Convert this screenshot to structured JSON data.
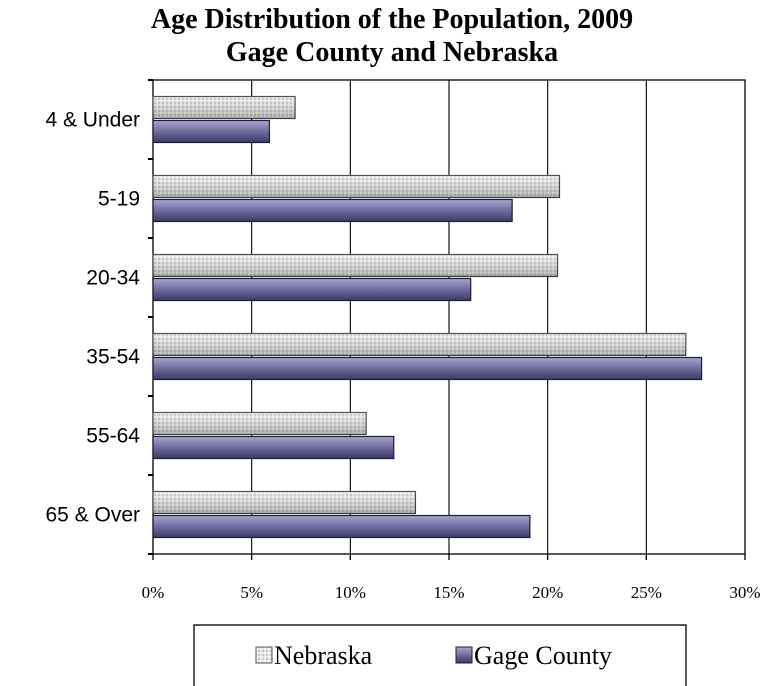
{
  "chart_data": {
    "type": "bar",
    "orientation": "horizontal",
    "title": "Age Distribution of the Population, 2009",
    "subtitle": "Gage County and Nebraska",
    "xlabel": "",
    "ylabel": "",
    "xlim": [
      0,
      30
    ],
    "x_ticks": [
      "0%",
      "5%",
      "10%",
      "15%",
      "20%",
      "25%",
      "30%"
    ],
    "categories": [
      "4 & Under",
      "5-19",
      "20-34",
      "35-54",
      "55-64",
      "65 & Over"
    ],
    "series": [
      {
        "name": "Nebraska",
        "values": [
          7.2,
          20.6,
          20.5,
          27.0,
          10.8,
          13.3
        ],
        "color": "#d9d9d9",
        "pattern": "dotted"
      },
      {
        "name": "Gage County",
        "values": [
          5.9,
          18.2,
          16.1,
          27.8,
          12.2,
          19.1
        ],
        "color": "#7b78a8",
        "pattern": "solid"
      }
    ],
    "grid": "vertical",
    "legend_position": "bottom"
  }
}
